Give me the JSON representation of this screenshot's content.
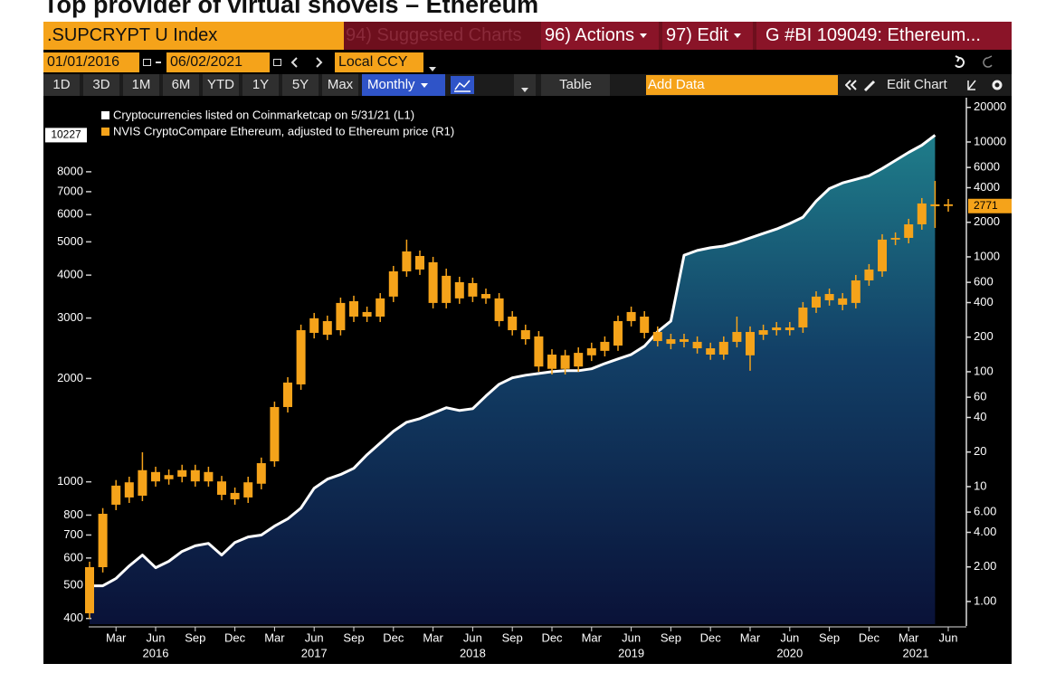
{
  "header": {
    "title": "Top provider of virtual shovels – Ethereum",
    "security": ".SUPCRYPT U Index",
    "suggested": "94) Suggested Charts",
    "actions": "96) Actions",
    "edit": "97) Edit",
    "chart_id": "G #BI 109049: Ethereum..."
  },
  "controls": {
    "start_date": "01/01/2016",
    "end_date": "06/02/2021",
    "currency": "Local CCY",
    "periods": [
      "1D",
      "3D",
      "1M",
      "6M",
      "YTD",
      "1Y",
      "5Y",
      "Max"
    ],
    "frequency": "Monthly",
    "table": "Table",
    "add_data": "Add Data",
    "edit_chart": "Edit Chart"
  },
  "chart_data": {
    "type": "combo",
    "categories": [
      null,
      null,
      "Mar",
      null,
      null,
      "Jun",
      null,
      null,
      "Sep",
      null,
      null,
      "Dec",
      null,
      null,
      "Mar",
      null,
      null,
      "Jun",
      null,
      null,
      "Sep",
      null,
      null,
      "Dec",
      null,
      null,
      "Mar",
      null,
      null,
      "Jun",
      null,
      null,
      "Sep",
      null,
      null,
      "Dec",
      null,
      null,
      "Mar",
      null,
      null,
      "Jun",
      null,
      null,
      "Sep",
      null,
      null,
      "Dec",
      null,
      null,
      "Mar",
      null,
      null,
      "Jun",
      null,
      null,
      "Sep",
      null,
      null,
      "Dec",
      null,
      null,
      "Mar",
      null,
      null,
      "Jun"
    ],
    "years": [
      "2016",
      "2017",
      "2018",
      "2019",
      "2020",
      "2021"
    ],
    "series": [
      {
        "name": "Cryptocurrencies listed on Coinmarketcap on 5/31/21 (L1)",
        "type": "line",
        "axis": "y",
        "color": "#ffffff",
        "values": [
          498,
          498,
          523,
          569,
          612,
          562,
          587,
          627,
          651,
          662,
          612,
          666,
          691,
          700,
          743,
          780,
          839,
          958,
          1018,
          1050,
          1095,
          1199,
          1297,
          1404,
          1491,
          1528,
          1585,
          1644,
          1613,
          1633,
          1778,
          1924,
          2008,
          2044,
          2068,
          2093,
          2107,
          2107,
          2134,
          2210,
          2280,
          2349,
          2484,
          2737,
          2940,
          4570,
          4718,
          4804,
          4860,
          4980,
          5132,
          5290,
          5450,
          5655,
          5898,
          6573,
          7146,
          7423,
          7600,
          7786,
          8174,
          8630,
          9110,
          9560,
          10227,
          null
        ]
      },
      {
        "name": "NVIS CryptoCompare Ethereum, adjusted to Ethereum price (R1)",
        "type": "candlestick",
        "axis": "y2",
        "color": "#f5a31a",
        "open": [
          0.79,
          1.99,
          6.96,
          8.05,
          8.34,
          13.4,
          11.6,
          12.2,
          13.9,
          11.1,
          11.1,
          8.81,
          8.05,
          10.6,
          16.6,
          49.3,
          77.6,
          218,
          276,
          230,
          411,
          302,
          302,
          451,
          748,
          1018,
          898,
          397,
          602,
          591,
          475,
          435,
          302,
          230,
          203,
          106,
          139,
          111,
          139,
          152,
          169,
          276,
          302,
          222,
          192,
          182,
          182,
          160,
          141,
          182,
          222,
          210,
          230,
          230,
          243,
          362,
          419,
          435,
          397,
          624,
          748,
          1413,
          1463,
          1919,
          2761,
          2866
        ],
        "high": [
          2.22,
          6.5,
          11.4,
          12.2,
          19.9,
          14.9,
          14.1,
          15.5,
          15.5,
          14.9,
          12.4,
          9.82,
          12.2,
          17.9,
          55.0,
          89.7,
          257,
          325,
          308,
          442,
          459,
          369,
          484,
          834,
          1413,
          1135,
          1000,
          790,
          671,
          659,
          530,
          484,
          337,
          257,
          226,
          157,
          155,
          163,
          179,
          203,
          308,
          369,
          337,
          248,
          214,
          214,
          203,
          179,
          203,
          302,
          248,
          257,
          271,
          271,
          404,
          502,
          530,
          484,
          696,
          865,
          1574,
          1633,
          2143,
          3251,
          4581,
          3190
        ],
        "low": [
          0.71,
          1.79,
          6.24,
          7.21,
          7.48,
          10.0,
          10.4,
          10.9,
          10.0,
          10.0,
          7.62,
          6.96,
          7.21,
          9.47,
          14.9,
          44.2,
          69.6,
          195,
          189,
          207,
          271,
          271,
          271,
          404,
          671,
          696,
          356,
          356,
          390,
          404,
          390,
          248,
          207,
          172,
          100,
          94.7,
          94.7,
          100,
          124,
          136,
          152,
          248,
          195,
          166,
          157,
          163,
          144,
          127,
          127,
          163,
          102,
          189,
          207,
          207,
          218,
          325,
          376,
          343,
          356,
          560,
          671,
          1266,
          1312,
          1722,
          1786,
          2475
        ],
        "close": [
          1.99,
          5.8,
          10.2,
          10.9,
          13.9,
          11.1,
          12.6,
          13.9,
          11.1,
          13.4,
          8.49,
          7.76,
          10.9,
          16.0,
          49.3,
          80.5,
          230,
          292,
          210,
          397,
          302,
          331,
          435,
          748,
          1115,
          776,
          397,
          684,
          435,
          451,
          435,
          276,
          230,
          192,
          111,
          141,
          106,
          146,
          160,
          182,
          276,
          331,
          218,
          185,
          175,
          192,
          160,
          141,
          182,
          222,
          139,
          230,
          243,
          243,
          362,
          451,
          475,
          383,
          624,
          776,
          1413,
          1463,
          1919,
          2917,
          2866,
          2771
        ]
      }
    ],
    "ylim": [
      385,
      12600
    ],
    "ylog": true,
    "yticks": [
      400,
      500,
      600,
      700,
      800,
      1000,
      2000,
      3000,
      4000,
      5000,
      6000,
      7000,
      8000
    ],
    "y2lim": [
      0.635,
      21400
    ],
    "y2log": true,
    "y2ticks": [
      {
        "value": 1,
        "label": "1.00"
      },
      {
        "value": 2,
        "label": "2.00"
      },
      {
        "value": 4,
        "label": "4.00"
      },
      {
        "value": 6,
        "label": "6.00"
      },
      10,
      20,
      40,
      60,
      100,
      200,
      400,
      600,
      1000,
      2000,
      4000,
      6000,
      10000,
      20000
    ],
    "legend": "top-left",
    "grid": false
  }
}
